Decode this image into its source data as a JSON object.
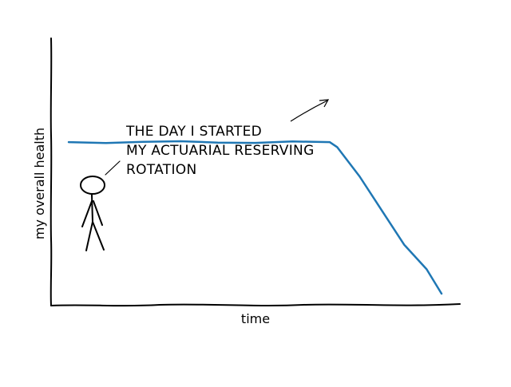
{
  "chart_data": {
    "type": "line",
    "title": "",
    "xlabel": "time",
    "ylabel": "my overall health",
    "xlim": [
      0,
      100
    ],
    "ylim": [
      -30,
      10
    ],
    "grid": false,
    "legend": "none",
    "series": [
      {
        "color": "#1f77b4",
        "x": [
          0,
          10,
          20,
          30,
          40,
          50,
          60,
          70,
          72,
          78,
          84,
          90,
          96,
          100
        ],
        "y": [
          1,
          1,
          1,
          1,
          1,
          1,
          1,
          1,
          0,
          -6,
          -13,
          -20,
          -25,
          -30
        ]
      }
    ],
    "annotations": [
      {
        "text_lines": [
          "THE DAY I STARTED",
          "MY ACTUARIAL RESERVING",
          "ROTATION"
        ],
        "point": [
          70,
          1
        ]
      }
    ],
    "axis_color": "#000000",
    "figure": "stick-figure"
  }
}
